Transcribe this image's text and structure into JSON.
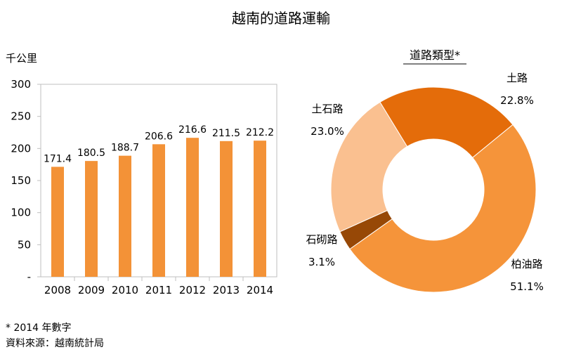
{
  "title": "越南的道路運輸",
  "chart_data": [
    {
      "type": "bar",
      "ylabel": "千公里",
      "categories": [
        "2008",
        "2009",
        "2010",
        "2011",
        "2012",
        "2013",
        "2014"
      ],
      "values": [
        171.4,
        180.5,
        188.7,
        206.6,
        216.6,
        211.5,
        212.2
      ],
      "value_labels": [
        "171.4",
        "180.5",
        "188.7",
        "206.6",
        "216.6",
        "211.5",
        "212.2"
      ],
      "ylim": [
        0,
        300
      ],
      "yticks": [
        0,
        50,
        100,
        150,
        200,
        250,
        300
      ],
      "ytick_labels": [
        "-",
        "50",
        "100",
        "150",
        "200",
        "250",
        "300"
      ],
      "grid": false,
      "bar_color": "#F39237"
    },
    {
      "type": "pie",
      "donut": true,
      "title": "道路類型*",
      "slices": [
        {
          "label": "土路",
          "value": 22.8,
          "value_label": "22.8%",
          "color": "#E46C0A"
        },
        {
          "label": "柏油路",
          "value": 51.1,
          "value_label": "51.1%",
          "color": "#F5943A"
        },
        {
          "label": "石砌路",
          "value": 3.1,
          "value_label": "3.1%",
          "color": "#974806"
        },
        {
          "label": "土石路",
          "value": 23.0,
          "value_label": "23.0%",
          "color": "#FAC090"
        }
      ]
    }
  ],
  "notes": {
    "footnote": "* 2014 年數字",
    "source": "資料來源：越南統計局"
  }
}
